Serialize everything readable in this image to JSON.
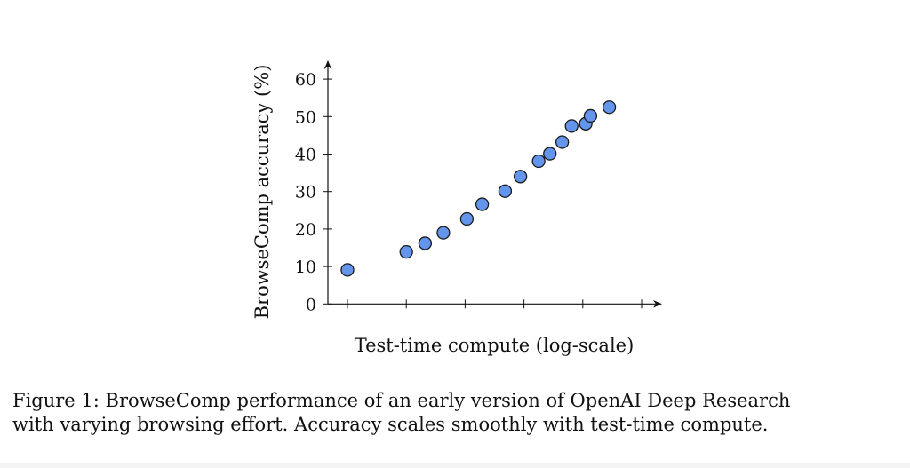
{
  "chart_data": {
    "type": "scatter",
    "title": "",
    "xlabel": "Test-time compute (log-scale)",
    "ylabel": "BrowseComp accuracy (%)",
    "x_ticks": [
      0,
      1,
      2,
      3,
      4,
      5
    ],
    "x_tick_labels": [
      "",
      "",
      "",
      "",
      "",
      ""
    ],
    "y_ticks": [
      0,
      10,
      20,
      30,
      40,
      50,
      60
    ],
    "y_tick_labels": [
      "0",
      "10",
      "20",
      "30",
      "40",
      "50",
      "60"
    ],
    "xlim": [
      -0.3,
      5.35
    ],
    "ylim": [
      0,
      64
    ],
    "grid": false,
    "marker_color": "#6495ED",
    "marker_edge_color": "#1a1a1a",
    "points": [
      {
        "x": 0.0,
        "y": 9.1
      },
      {
        "x": 1.0,
        "y": 13.9
      },
      {
        "x": 1.32,
        "y": 16.2
      },
      {
        "x": 1.63,
        "y": 19.0
      },
      {
        "x": 2.03,
        "y": 22.7
      },
      {
        "x": 2.29,
        "y": 26.6
      },
      {
        "x": 2.68,
        "y": 30.1
      },
      {
        "x": 2.94,
        "y": 34.0
      },
      {
        "x": 3.25,
        "y": 38.1
      },
      {
        "x": 3.44,
        "y": 40.1
      },
      {
        "x": 3.65,
        "y": 43.2
      },
      {
        "x": 3.81,
        "y": 47.5
      },
      {
        "x": 4.05,
        "y": 48.1
      },
      {
        "x": 4.13,
        "y": 50.2
      },
      {
        "x": 4.45,
        "y": 52.5
      }
    ]
  },
  "caption": {
    "line1": "Figure 1: BrowseComp performance of an early version of OpenAI Deep Research",
    "line2": "with varying browsing effort. Accuracy scales smoothly with test-time compute."
  }
}
